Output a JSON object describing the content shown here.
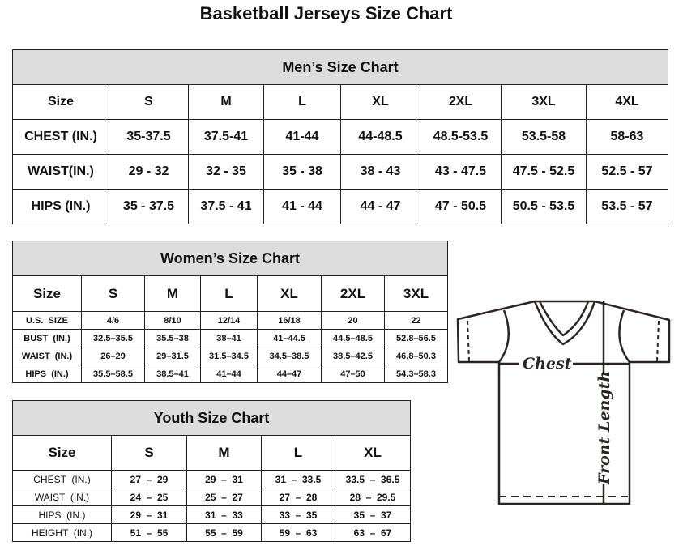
{
  "title": "Basketball Jerseys Size Chart",
  "men": {
    "caption": "Men’s Size Chart",
    "rows": [
      [
        "Size",
        "S",
        "M",
        "L",
        "XL",
        "2XL",
        "3XL",
        "4XL"
      ],
      [
        "CHEST (IN.)",
        "35-37.5",
        "37.5-41",
        "41-44",
        "44-48.5",
        "48.5-53.5",
        "53.5-58",
        "58-63"
      ],
      [
        "WAIST(IN.)",
        "29 - 32",
        "32 - 35",
        "35 - 38",
        "38 - 43",
        "43 - 47.5",
        "47.5 - 52.5",
        "52.5 - 57"
      ],
      [
        "HIPS (IN.)",
        "35 - 37.5",
        "37.5 - 41",
        "41 - 44",
        "44 - 47",
        "47 - 50.5",
        "50.5 - 53.5",
        "53.5 - 57"
      ]
    ]
  },
  "women": {
    "caption": "Women’s Size Chart",
    "rows": [
      [
        "Size",
        "S",
        "M",
        "L",
        "XL",
        "2XL",
        "3XL"
      ],
      [
        "U.S.  SIZE",
        "4/6",
        "8/10",
        "12/14",
        "16/18",
        "20",
        "22"
      ],
      [
        "BUST  (IN.)",
        "32.5–35.5",
        "35.5–38",
        "38–41",
        "41–44.5",
        "44.5–48.5",
        "52.8–56.5"
      ],
      [
        "WAIST  (IN.)",
        "26–29",
        "29–31.5",
        "31.5–34.5",
        "34.5–38.5",
        "38.5–42.5",
        "46.8–50.3"
      ],
      [
        "HIPS  (IN.)",
        "35.5–58.5",
        "38.5–41",
        "41–44",
        "44–47",
        "47–50",
        "54.3–58.3"
      ]
    ]
  },
  "youth": {
    "caption": "Youth Size Chart",
    "rows": [
      [
        "Size",
        "S",
        "M",
        "L",
        "XL"
      ],
      [
        "CHEST  (IN.)",
        "27  –  29",
        "29  –  31",
        "31  –  33.5",
        "33.5  –  36.5"
      ],
      [
        "WAIST  (IN.)",
        "24  –  25",
        "25  –  27",
        "27  –  28",
        "28  –  29.5"
      ],
      [
        "HIPS  (IN.)",
        "29  –  31",
        "31  –  33",
        "33  –  35",
        "35  –  37"
      ],
      [
        "HEIGHT  (IN.)",
        "51  –  55",
        "55  –  59",
        "59  –  63",
        "63  –  67"
      ]
    ]
  },
  "diagram": {
    "chest_label": "Chest",
    "length_label": "Front Length"
  }
}
